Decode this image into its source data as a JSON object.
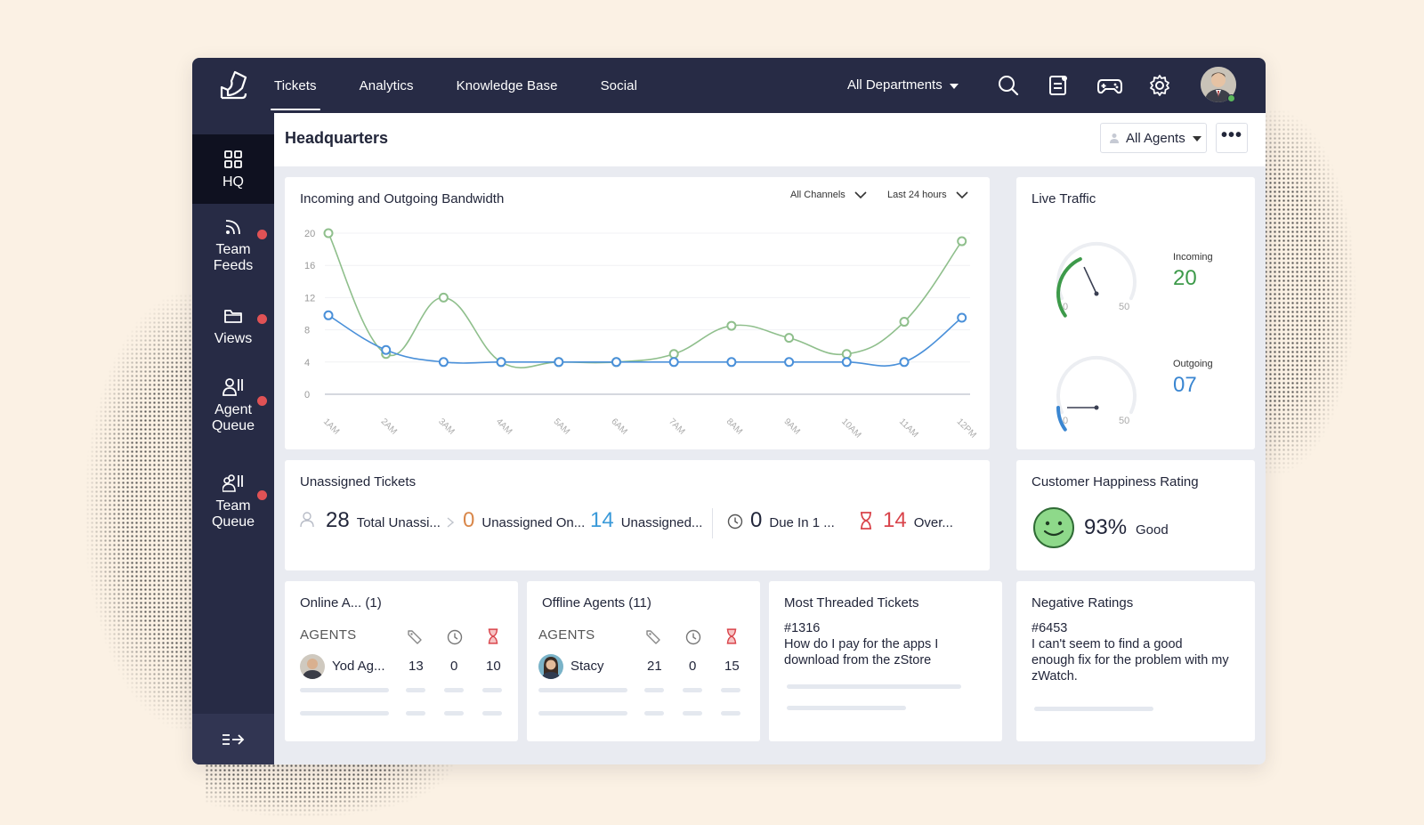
{
  "nav": {
    "tabs": [
      {
        "label": "Tickets",
        "active": true
      },
      {
        "label": "Analytics"
      },
      {
        "label": "Knowledge Base"
      },
      {
        "label": "Social"
      }
    ],
    "department": "All Departments",
    "icons": [
      "search-icon",
      "notes-icon",
      "gamepad-icon",
      "gear-icon"
    ]
  },
  "sidebar": {
    "items": [
      {
        "label": "HQ",
        "icon": "grid-icon",
        "active": true
      },
      {
        "label": "Team\nFeeds",
        "icon": "feed-icon",
        "badge": true
      },
      {
        "label": "Views",
        "icon": "folder-icon",
        "badge": true
      },
      {
        "label": "Agent\nQueue",
        "icon": "agent-queue-icon",
        "badge": true
      },
      {
        "label": "Team\nQueue",
        "icon": "team-queue-icon",
        "badge": true
      }
    ],
    "collapse_icon": "collapse-arrow-icon"
  },
  "header": {
    "title": "Headquarters",
    "agents_filter": "All Agents",
    "more": "•••"
  },
  "bandwidth": {
    "title": "Incoming and Outgoing Bandwidth",
    "channel_filter": "All Channels",
    "time_filter": "Last 24 hours"
  },
  "chart_data": {
    "type": "line",
    "categories": [
      "1AM",
      "2AM",
      "3AM",
      "4AM",
      "5AM",
      "6AM",
      "7AM",
      "8AM",
      "9AM",
      "10AM",
      "11AM",
      "12PM"
    ],
    "y_ticks": [
      0,
      4,
      8,
      12,
      16,
      20
    ],
    "ylim": [
      0,
      20
    ],
    "series": [
      {
        "color": "#8fbf8c",
        "values": [
          20,
          5,
          12,
          4,
          4,
          4,
          5,
          8.5,
          7,
          5,
          9,
          19
        ]
      },
      {
        "color": "#4a90d9",
        "values": [
          9.8,
          5.5,
          4,
          4,
          4,
          4,
          4,
          4,
          4,
          4,
          4,
          9.5
        ]
      }
    ],
    "grid": true
  },
  "live_traffic": {
    "title": "Live Traffic",
    "incoming": {
      "label": "Incoming",
      "value": "20",
      "min": "0",
      "max": "50",
      "color": "#3d9a4a"
    },
    "outgoing": {
      "label": "Outgoing",
      "value": "07",
      "min": "0",
      "max": "50",
      "color": "#3a86d1"
    }
  },
  "unassigned": {
    "title": "Unassigned Tickets",
    "total": {
      "value": "28",
      "label": "Total Unassi..."
    },
    "on": {
      "value": "0",
      "label": "Unassigned On...",
      "color": "#d9874a"
    },
    "unassigned": {
      "value": "14",
      "label": "Unassigned...",
      "color": "#3a9ad9"
    },
    "due": {
      "value": "0",
      "label": "Due In 1 ..."
    },
    "overdue": {
      "value": "14",
      "label": "Over...",
      "color": "#d9444b"
    }
  },
  "happiness": {
    "title": "Customer Happiness Rating",
    "percent": "93%",
    "label": "Good"
  },
  "online": {
    "title": "Online A... (1)",
    "header": "AGENTS",
    "row": {
      "name": "Yod Ag...",
      "a": "13",
      "b": "0",
      "c": "10"
    }
  },
  "offline": {
    "title": "Offline Agents (11)",
    "header": "AGENTS",
    "row": {
      "name": "Stacy",
      "a": "21",
      "b": "0",
      "c": "15"
    }
  },
  "threaded": {
    "title": "Most Threaded Tickets",
    "ticket_id": "#1316",
    "ticket_text": "How do I pay for the apps I download from the zStore"
  },
  "negative": {
    "title": "Negative Ratings",
    "ticket_id": "#6453",
    "ticket_text": "I can't seem to find a good enough fix for the problem with my zWatch."
  }
}
